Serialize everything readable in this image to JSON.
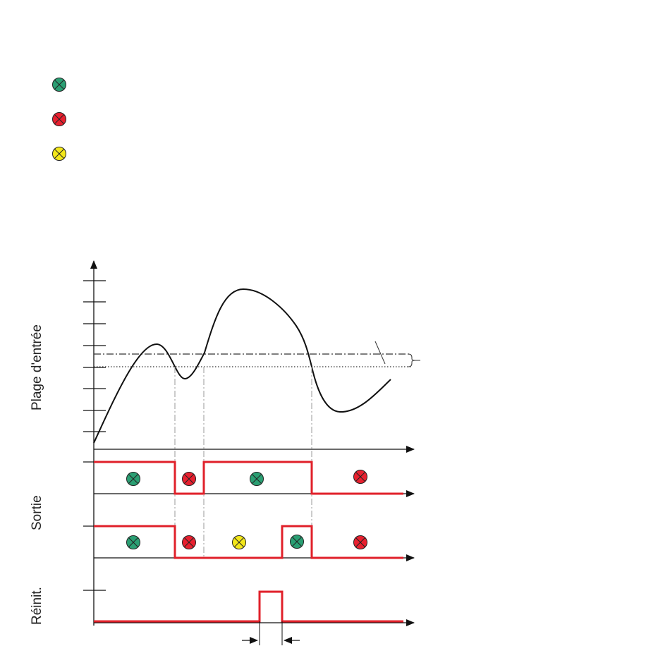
{
  "labels": {
    "input_range": "Plage d'entrée",
    "output": "Sortie",
    "reset": "Réinit."
  },
  "legend": [
    {
      "icon": "lamp-green-icon",
      "color": "#2a9f73"
    },
    {
      "icon": "lamp-red-icon",
      "color": "#e8202f"
    },
    {
      "icon": "lamp-yellow-icon",
      "color": "#f4e81a"
    }
  ],
  "colors": {
    "signal": "#e0202a",
    "curve": "#111111",
    "guide": "#888888",
    "green": "#2a9f73",
    "red": "#e8202f",
    "yellow": "#f4e81a"
  },
  "output1_lamps": [
    "green",
    "red",
    "green",
    "red"
  ],
  "output2_lamps": [
    "green",
    "red",
    "yellow",
    "green",
    "red"
  ]
}
